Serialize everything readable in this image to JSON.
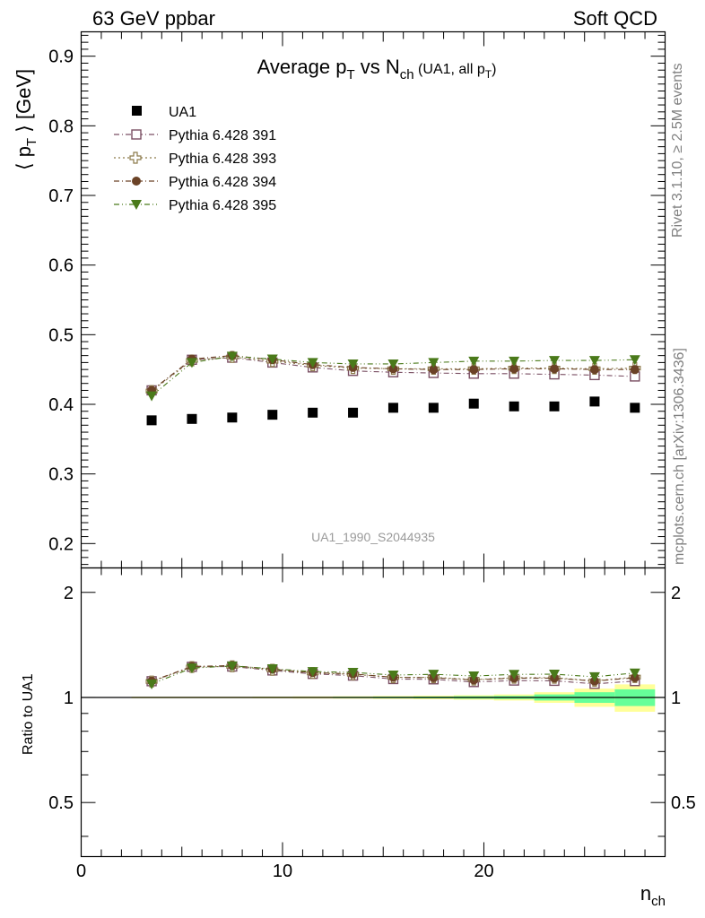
{
  "header": {
    "left": "63 GeV ppbar",
    "right": "Soft QCD"
  },
  "side_labels": {
    "rivet": "Rivet 3.1.10, ≥ 2.5M events",
    "mcplots": "mcplots.cern.ch [arXiv:1306.3436]"
  },
  "watermark": "UA1_1990_S2044935",
  "chart_data": [
    {
      "type": "scatter",
      "title_parts": {
        "main": "Average p",
        "main_sub": "T",
        "vs": " vs N",
        "vs_sub": "ch",
        "note": " (UA1, all p",
        "note_sub": "T",
        "note_end": ")"
      },
      "ylabel_parts": {
        "open": "⟨ p",
        "sub": "T",
        "close": " ⟩ [GeV]"
      },
      "xlabel_parts": {
        "main": "n",
        "sub": "ch"
      },
      "xlim": [
        0,
        29
      ],
      "ylim": [
        0.165,
        0.935
      ],
      "x_ticks": [
        0,
        10,
        20
      ],
      "x_tick_labels": [
        "0",
        "10",
        "20"
      ],
      "y_ticks": [
        0.2,
        0.3,
        0.4,
        0.5,
        0.6,
        0.7,
        0.8,
        0.9
      ],
      "y_tick_labels": [
        "0.2",
        "0.3",
        "0.4",
        "0.5",
        "0.6",
        "0.7",
        "0.8",
        "0.9"
      ],
      "x": [
        3.5,
        5.5,
        7.5,
        9.5,
        11.5,
        13.5,
        15.5,
        17.5,
        19.5,
        21.5,
        23.5,
        25.5,
        27.5
      ],
      "legend_placement": "top-left",
      "series": [
        {
          "name": "UA1",
          "marker": "square-filled",
          "color": "#000000",
          "values": [
            0.377,
            0.379,
            0.381,
            0.385,
            0.388,
            0.388,
            0.395,
            0.395,
            0.401,
            0.397,
            0.397,
            0.404,
            0.395
          ]
        },
        {
          "name": "Pythia 6.428 391",
          "marker": "square-open",
          "color": "#7a4f63",
          "values": [
            0.42,
            0.464,
            0.467,
            0.46,
            0.453,
            0.448,
            0.446,
            0.445,
            0.444,
            0.444,
            0.443,
            0.442,
            0.44
          ]
        },
        {
          "name": "Pythia 6.428 393",
          "marker": "cross-open",
          "color": "#8c7a4a",
          "values": [
            0.419,
            0.463,
            0.468,
            0.462,
            0.456,
            0.452,
            0.451,
            0.451,
            0.451,
            0.452,
            0.452,
            0.451,
            0.452
          ]
        },
        {
          "name": "Pythia 6.428 394",
          "marker": "circle-filled",
          "color": "#6b4226",
          "values": [
            0.42,
            0.465,
            0.47,
            0.464,
            0.457,
            0.453,
            0.451,
            0.45,
            0.45,
            0.451,
            0.451,
            0.45,
            0.45
          ]
        },
        {
          "name": "Pythia 6.428 395",
          "marker": "triangle-down-filled",
          "color": "#4a7a1a",
          "values": [
            0.412,
            0.46,
            0.469,
            0.465,
            0.46,
            0.458,
            0.458,
            0.46,
            0.462,
            0.462,
            0.463,
            0.463,
            0.464
          ]
        }
      ]
    },
    {
      "type": "scatter",
      "ylabel": "Ratio to UA1",
      "xlim": [
        0,
        29
      ],
      "ylim": [
        0.35,
        2.35
      ],
      "y_ticks": [
        0.5,
        1,
        2
      ],
      "y_tick_labels": [
        "0.5",
        "1",
        "2"
      ],
      "x": [
        3.5,
        5.5,
        7.5,
        9.5,
        11.5,
        13.5,
        15.5,
        17.5,
        19.5,
        21.5,
        23.5,
        25.5,
        27.5
      ],
      "reference_line": 1,
      "uncertainty_band": {
        "colors": {
          "outer": "#ffff99",
          "inner": "#66ff99"
        },
        "x_edges": [
          2.5,
          4.5,
          6.5,
          8.5,
          10.5,
          12.5,
          14.5,
          16.5,
          18.5,
          20.5,
          22.5,
          24.5,
          26.5,
          28.5
        ],
        "outer_half_width": [
          0.005,
          0.005,
          0.005,
          0.006,
          0.007,
          0.008,
          0.01,
          0.012,
          0.015,
          0.02,
          0.035,
          0.06,
          0.09
        ],
        "inner_half_width": [
          0.002,
          0.002,
          0.002,
          0.003,
          0.003,
          0.004,
          0.005,
          0.006,
          0.008,
          0.01,
          0.02,
          0.035,
          0.055
        ]
      },
      "series": [
        {
          "name": "Pythia 6.428 391",
          "marker": "square-open",
          "color": "#7a4f63",
          "values": [
            1.113,
            1.224,
            1.226,
            1.195,
            1.168,
            1.155,
            1.129,
            1.127,
            1.107,
            1.118,
            1.116,
            1.094,
            1.114
          ]
        },
        {
          "name": "Pythia 6.428 393",
          "marker": "cross-open",
          "color": "#8c7a4a",
          "values": [
            1.111,
            1.222,
            1.228,
            1.2,
            1.175,
            1.165,
            1.142,
            1.142,
            1.125,
            1.139,
            1.139,
            1.116,
            1.144
          ]
        },
        {
          "name": "Pythia 6.428 394",
          "marker": "circle-filled",
          "color": "#6b4226",
          "values": [
            1.114,
            1.227,
            1.234,
            1.205,
            1.178,
            1.168,
            1.142,
            1.139,
            1.122,
            1.136,
            1.136,
            1.114,
            1.139
          ]
        },
        {
          "name": "Pythia 6.428 395",
          "marker": "triangle-down-filled",
          "color": "#4a7a1a",
          "values": [
            1.093,
            1.214,
            1.231,
            1.208,
            1.186,
            1.18,
            1.159,
            1.165,
            1.152,
            1.164,
            1.166,
            1.146,
            1.175
          ]
        }
      ]
    }
  ]
}
